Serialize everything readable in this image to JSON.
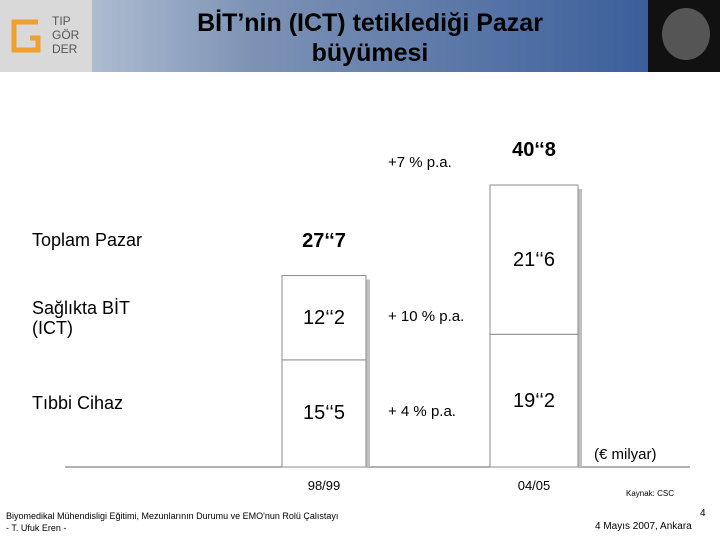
{
  "header": {
    "logo": [
      "TIP",
      "GÖR",
      "DER"
    ]
  },
  "chart_data": {
    "type": "bar",
    "stacked": true,
    "title": "BİT’nin (ICT) tetiklediği Pazar büyümesi",
    "categories": [
      "98/99",
      "04/05"
    ],
    "series": [
      {
        "name": "Tıbbi Cihaz",
        "color": "#ffffff",
        "values": [
          15.5,
          19.2
        ],
        "value_labels": [
          "15‘‘5",
          "19‘‘2"
        ],
        "growth": "+ 4 % p.a."
      },
      {
        "name": "Sağlıkta BİT (ICT)",
        "color": "#ffffff",
        "values": [
          12.2,
          21.6
        ],
        "value_labels": [
          "12‘‘2",
          "21‘‘6"
        ],
        "growth": "+ 10 % p.a."
      }
    ],
    "totals": {
      "name": "Toplam Pazar",
      "values": [
        27.7,
        40.8
      ],
      "value_labels": [
        "27‘‘7",
        "40‘‘8"
      ],
      "growth": "+7 % p.a."
    },
    "unit": "(€ milyar)",
    "source": "Kaynak: CSC"
  },
  "footer": {
    "left": [
      "Biyomedikal Mühendisligi Eğitimi, Mezunlarının Durumu ve EMO'nun Rolü Çalıstayı",
      "- T. Ufuk Eren  -"
    ],
    "page": "4",
    "date": "4 Mayıs 2007, Ankara"
  }
}
